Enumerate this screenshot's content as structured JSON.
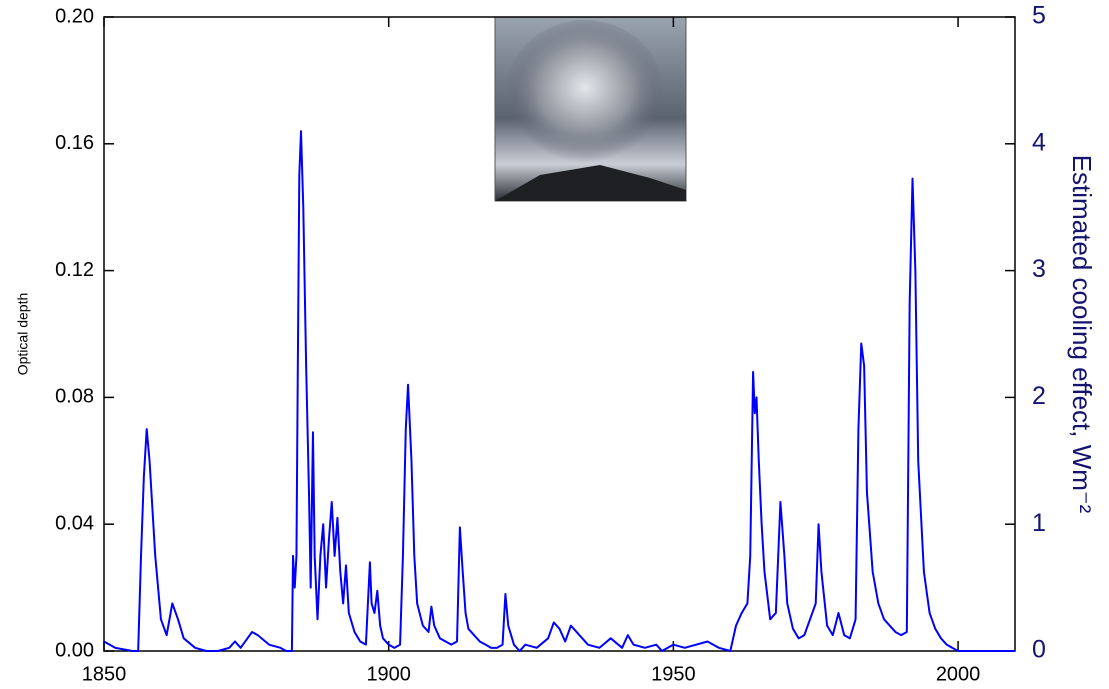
{
  "chart_data": {
    "type": "line",
    "ylabel": "Optical depth",
    "y2label": "Estimated cooling effect, Wm⁻²",
    "color": "#0000ff",
    "xlim": [
      1850,
      2010
    ],
    "xticks": [
      1850,
      1900,
      1950,
      2000
    ],
    "ylim": [
      0,
      0.2
    ],
    "yticks": [
      {
        "value": 0,
        "label": "0.00"
      },
      {
        "value": 0.04,
        "label": "0.04"
      },
      {
        "value": 0.08,
        "label": "0.08"
      },
      {
        "value": 0.12,
        "label": "0.12"
      },
      {
        "value": 0.16,
        "label": "0.16"
      },
      {
        "value": 0.2,
        "label": "0.20"
      }
    ],
    "y2lim": [
      0,
      5
    ],
    "y2ticks": [
      0,
      1,
      2,
      3,
      4,
      5
    ],
    "x": [
      1850,
      1852,
      1855,
      1856,
      1856.5,
      1857,
      1857.5,
      1858,
      1859,
      1860,
      1861,
      1862,
      1863,
      1864,
      1866,
      1868,
      1870,
      1872,
      1873,
      1874,
      1876,
      1877,
      1879,
      1881,
      1882,
      1883,
      1883.2,
      1883.5,
      1883.8,
      1884,
      1884.3,
      1884.6,
      1885,
      1885.5,
      1886,
      1886.3,
      1886.7,
      1887,
      1887.5,
      1888,
      1888.5,
      1889,
      1889.5,
      1890,
      1890.5,
      1891,
      1891.5,
      1892,
      1892.5,
      1893,
      1894,
      1895,
      1896,
      1896.7,
      1897,
      1897.5,
      1898,
      1898.5,
      1899,
      1900,
      1901,
      1902,
      1902.5,
      1903,
      1903.4,
      1904,
      1904.5,
      1905,
      1906,
      1907,
      1907.5,
      1908,
      1909,
      1910,
      1911,
      1912,
      1912.5,
      1913,
      1913.5,
      1914,
      1915,
      1916,
      1917,
      1918,
      1919,
      1920,
      1920.5,
      1921,
      1922,
      1923,
      1924,
      1926,
      1928,
      1929,
      1930,
      1931,
      1932,
      1933,
      1935,
      1937,
      1939,
      1941,
      1942,
      1943,
      1945,
      1947,
      1948,
      1950,
      1952,
      1954,
      1956,
      1958,
      1960,
      1961,
      1962,
      1963,
      1963.5,
      1964,
      1964.3,
      1964.6,
      1965,
      1965.5,
      1966,
      1967,
      1968,
      1968.8,
      1969.5,
      1970,
      1971,
      1972,
      1973,
      1974,
      1975,
      1975.5,
      1976,
      1977,
      1978,
      1979,
      1980,
      1981,
      1982,
      1982.5,
      1983,
      1983.5,
      1984,
      1985,
      1986,
      1987,
      1988,
      1989,
      1990,
      1991,
      1991.5,
      1992,
      1992.5,
      1993,
      1994,
      1995,
      1996,
      1997,
      1998,
      1999,
      2000,
      2002,
      2005,
      2010
    ],
    "values": [
      0.003,
      0.001,
      0,
      0,
      0.03,
      0.055,
      0.07,
      0.06,
      0.03,
      0.01,
      0.005,
      0.015,
      0.01,
      0.004,
      0.001,
      0,
      0,
      0.001,
      0.003,
      0.001,
      0.006,
      0.005,
      0.002,
      0.001,
      0,
      0,
      0.03,
      0.02,
      0.03,
      0.08,
      0.15,
      0.164,
      0.14,
      0.09,
      0.05,
      0.02,
      0.069,
      0.03,
      0.01,
      0.03,
      0.04,
      0.02,
      0.035,
      0.047,
      0.03,
      0.042,
      0.025,
      0.015,
      0.027,
      0.012,
      0.006,
      0.003,
      0.002,
      0.028,
      0.015,
      0.012,
      0.019,
      0.008,
      0.004,
      0.002,
      0.001,
      0.002,
      0.03,
      0.07,
      0.084,
      0.06,
      0.03,
      0.015,
      0.008,
      0.006,
      0.014,
      0.008,
      0.004,
      0.003,
      0.002,
      0.003,
      0.039,
      0.025,
      0.012,
      0.007,
      0.005,
      0.003,
      0.002,
      0.001,
      0.001,
      0.002,
      0.018,
      0.008,
      0.002,
      0,
      0.002,
      0.001,
      0.004,
      0.009,
      0.007,
      0.003,
      0.008,
      0.006,
      0.002,
      0.001,
      0.004,
      0.001,
      0.005,
      0.002,
      0.001,
      0.002,
      0,
      0.002,
      0.001,
      0.002,
      0.003,
      0.001,
      0,
      0.008,
      0.012,
      0.015,
      0.03,
      0.088,
      0.075,
      0.08,
      0.06,
      0.04,
      0.025,
      0.01,
      0.012,
      0.047,
      0.03,
      0.015,
      0.007,
      0.004,
      0.005,
      0.01,
      0.015,
      0.04,
      0.025,
      0.008,
      0.005,
      0.012,
      0.005,
      0.004,
      0.01,
      0.07,
      0.097,
      0.09,
      0.05,
      0.025,
      0.015,
      0.01,
      0.008,
      0.006,
      0.005,
      0.006,
      0.11,
      0.149,
      0.12,
      0.06,
      0.025,
      0.012,
      0.007,
      0.004,
      0.002,
      0.001,
      0,
      0,
      0,
      0
    ]
  }
}
